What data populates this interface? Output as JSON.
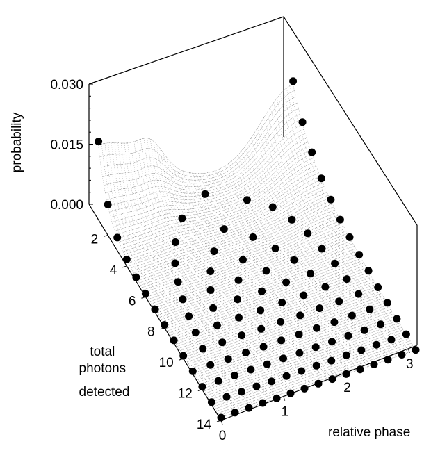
{
  "chart_data": {
    "type": "surface-3d",
    "title": "",
    "z_axis": {
      "label": "probability",
      "ticks": [
        "0.000",
        "0.015",
        "0.030"
      ],
      "range": [
        0,
        0.03
      ]
    },
    "n_axis": {
      "label_lines": [
        "total",
        "photons",
        "detected"
      ],
      "ticks": [
        "2",
        "4",
        "6",
        "8",
        "10",
        "12",
        "14"
      ],
      "range": [
        1,
        14
      ]
    },
    "phase_axis": {
      "label": "relative phase",
      "ticks": [
        "0",
        "1",
        "2",
        "3"
      ],
      "range": [
        0,
        3.14159
      ]
    },
    "series": [
      {
        "type": "surface-mesh"
      },
      {
        "type": "scatter-3d"
      }
    ],
    "colors": {
      "mesh": "#555555",
      "points": "#000000",
      "frame": "#000000"
    }
  }
}
